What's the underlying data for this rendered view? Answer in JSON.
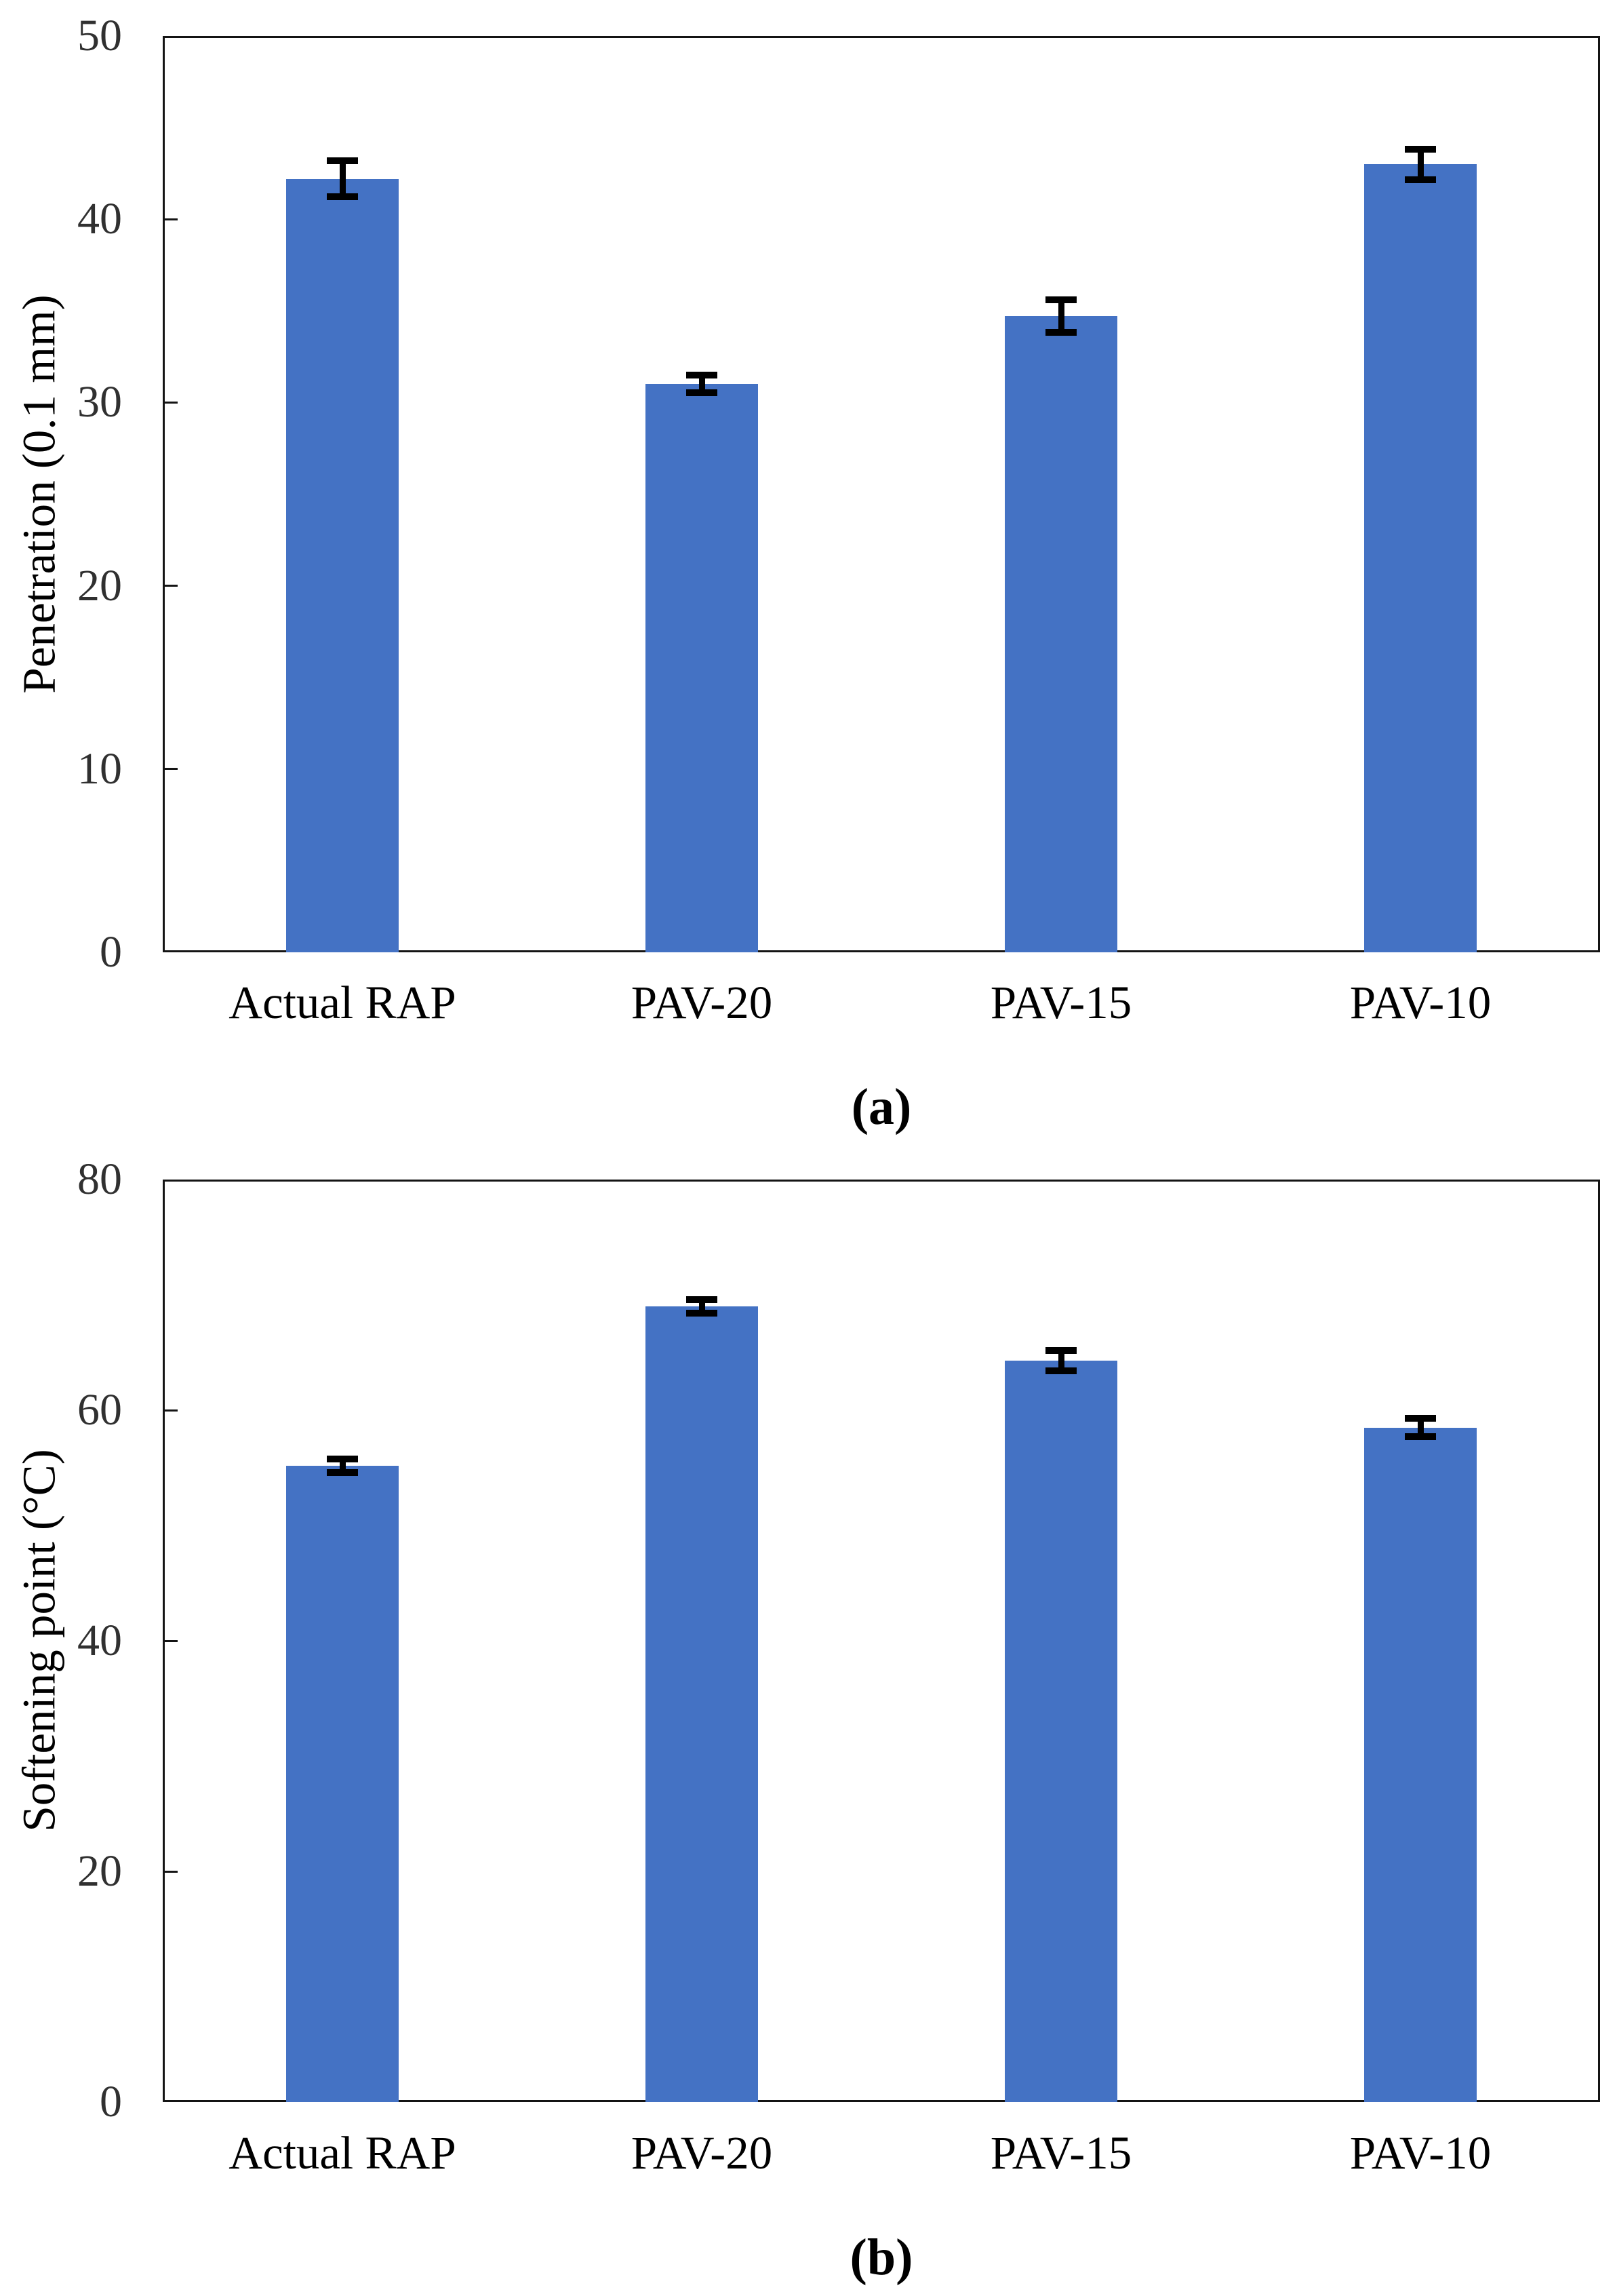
{
  "chart_data": [
    {
      "type": "bar",
      "id": "a",
      "caption": "(a)",
      "ylabel": "Penetration (0.1 mm)",
      "xlabel": "",
      "categories": [
        "Actual RAP",
        "PAV-20",
        "PAV-15",
        "PAV-10"
      ],
      "values": [
        42.2,
        31.0,
        34.7,
        43.0
      ],
      "errors": [
        0.8,
        0.3,
        0.7,
        0.65
      ],
      "ylim": [
        0,
        50
      ],
      "yticks": [
        0,
        10,
        20,
        30,
        40,
        50
      ],
      "grid": false,
      "legend": "none",
      "bar_color": "#4472C4",
      "error_color": "#000000"
    },
    {
      "type": "bar",
      "id": "b",
      "caption": "(b)",
      "ylabel": "Softening point (°C)",
      "xlabel": "",
      "categories": [
        "Actual RAP",
        "PAV-20",
        "PAV-15",
        "PAV-10"
      ],
      "values": [
        55.2,
        69.0,
        64.3,
        58.5
      ],
      "errors": [
        0.3,
        0.3,
        0.6,
        0.5
      ],
      "ylim": [
        0,
        80
      ],
      "yticks": [
        0,
        20,
        40,
        60,
        80
      ],
      "grid": false,
      "legend": "none",
      "bar_color": "#4472C4",
      "error_color": "#000000"
    }
  ]
}
